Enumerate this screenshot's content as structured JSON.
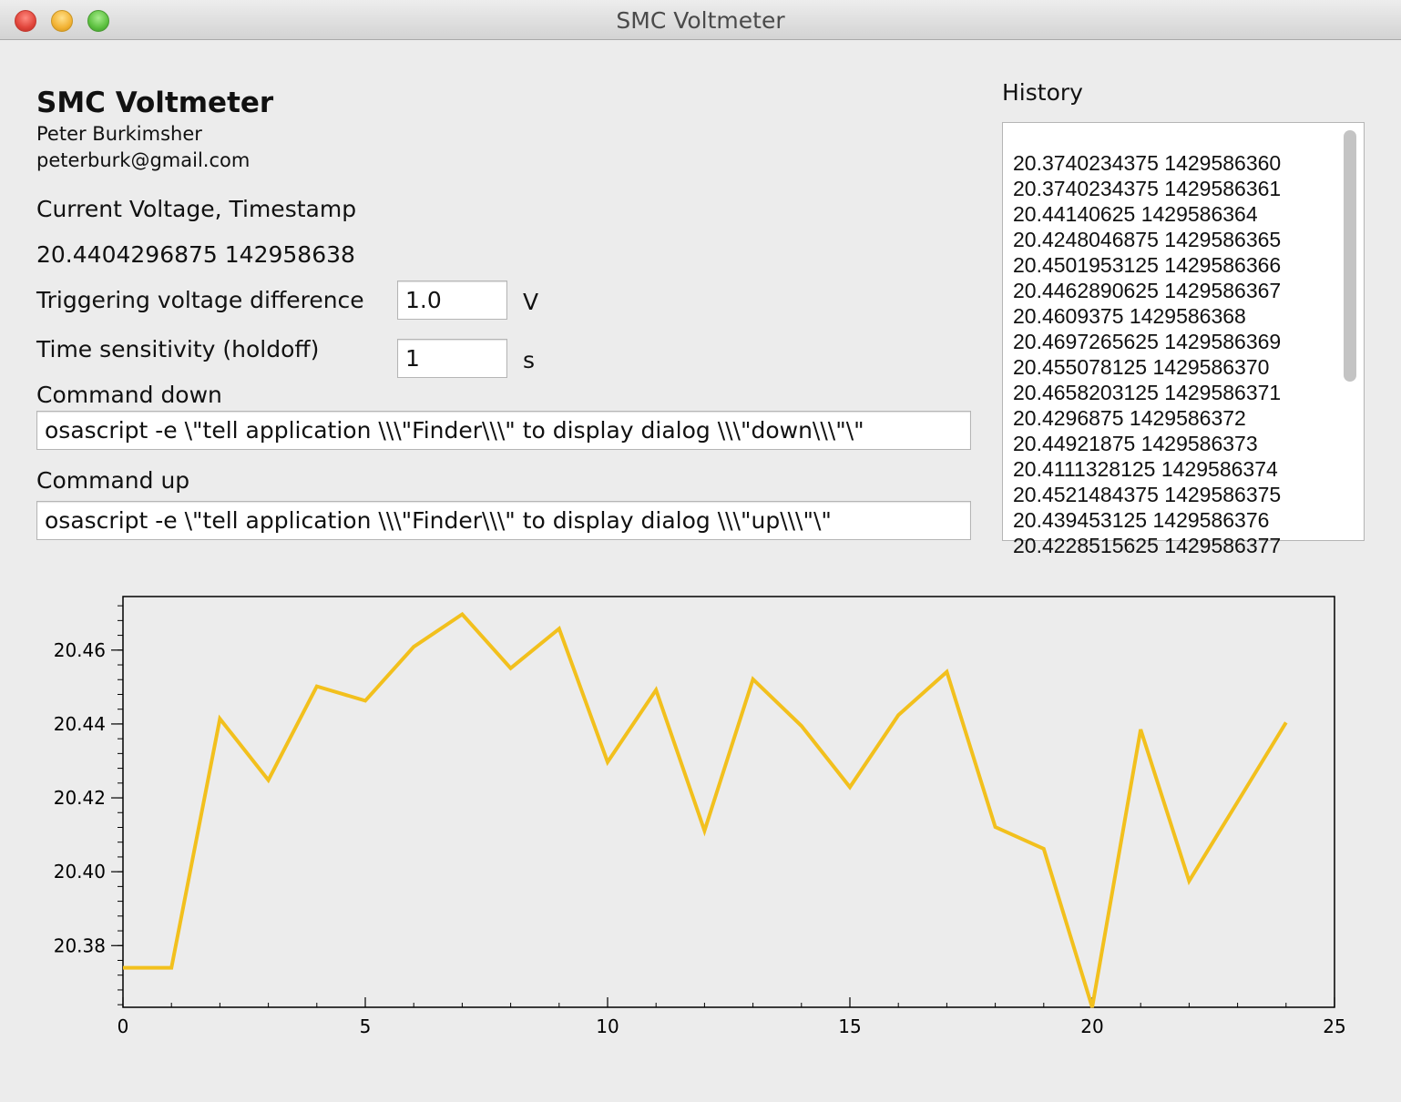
{
  "window": {
    "title": "SMC Voltmeter"
  },
  "app": {
    "title": "SMC Voltmeter",
    "author": "Peter Burkimsher",
    "email": "peterburk@gmail.com"
  },
  "current": {
    "label": "Current Voltage, Timestamp",
    "value": "20.4404296875 142958638"
  },
  "trigger": {
    "label": "Triggering voltage difference",
    "value": "1.0",
    "unit": "V"
  },
  "holdoff": {
    "label": "Time sensitivity (holdoff)",
    "value": "1",
    "unit": "s"
  },
  "command_down": {
    "label": "Command down",
    "value": "osascript -e \\\"tell application \\\\\\\"Finder\\\\\\\" to display dialog \\\\\\\"down\\\\\\\"\\\""
  },
  "command_up": {
    "label": "Command up",
    "value": "osascript -e \\\"tell application \\\\\\\"Finder\\\\\\\" to display dialog \\\\\\\"up\\\\\\\"\\\""
  },
  "history": {
    "label": "History",
    "entries": [
      "20.3740234375 1429586360",
      "20.3740234375 1429586361",
      "20.44140625 1429586364",
      "20.4248046875 1429586365",
      "20.4501953125 1429586366",
      "20.4462890625 1429586367",
      "20.4609375 1429586368",
      "20.4697265625 1429586369",
      "20.455078125 1429586370",
      "20.4658203125 1429586371",
      "20.4296875 1429586372",
      "20.44921875 1429586373",
      "20.4111328125 1429586374",
      "20.4521484375 1429586375",
      "20.439453125 1429586376",
      "20.4228515625 1429586377"
    ]
  },
  "chart_data": {
    "type": "line",
    "title": "",
    "xlabel": "",
    "ylabel": "",
    "xlim": [
      0,
      25
    ],
    "ylim": [
      20.3633,
      20.4745
    ],
    "x_ticks": [
      0,
      5,
      10,
      15,
      20,
      25
    ],
    "y_ticks": [
      20.38,
      20.4,
      20.42,
      20.44,
      20.46
    ],
    "x_tick_labels": [
      "0",
      "5",
      "10",
      "15",
      "20",
      "25"
    ],
    "y_tick_labels": [
      "20.38",
      "20.40",
      "20.42",
      "20.44",
      "20.46"
    ],
    "grid": false,
    "line_color": "#f2c01d",
    "series": [
      {
        "x": [
          0,
          1,
          2,
          3,
          4,
          5,
          6,
          7,
          8,
          9,
          10,
          11,
          12,
          13,
          14,
          15,
          16,
          17,
          18,
          19,
          20,
          21,
          22,
          23,
          24
        ],
        "values": [
          20.374,
          20.374,
          20.4414,
          20.4248,
          20.4502,
          20.4463,
          20.4609,
          20.4697,
          20.4551,
          20.4658,
          20.4297,
          20.4492,
          20.4111,
          20.4521,
          20.4395,
          20.4229,
          20.4424,
          20.4541,
          20.4121,
          20.4062,
          20.3633,
          20.4385,
          20.3975,
          20.4189,
          20.4404
        ]
      }
    ]
  }
}
